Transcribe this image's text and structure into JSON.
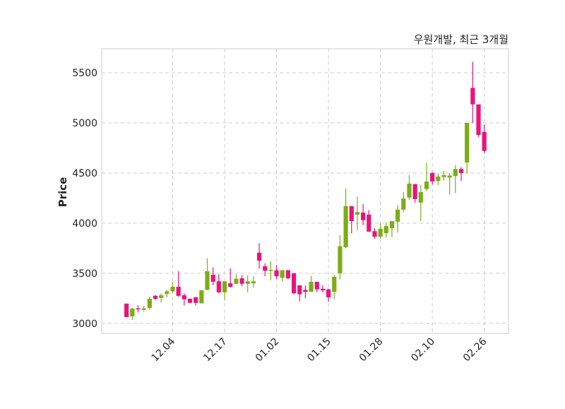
{
  "chart_data": {
    "type": "candlestick",
    "title": "우원개발, 최근 3개월",
    "xlabel": "",
    "ylabel": "Price",
    "ylim": [
      2900,
      5740
    ],
    "yticks": [
      3000,
      3500,
      4000,
      4500,
      5000,
      5500
    ],
    "xticks": [
      {
        "index": 8,
        "label": "12.04"
      },
      {
        "index": 17,
        "label": "12.17"
      },
      {
        "index": 26,
        "label": "01.02"
      },
      {
        "index": 35,
        "label": "01.15"
      },
      {
        "index": 44,
        "label": "01.28"
      },
      {
        "index": 53,
        "label": "02.10"
      },
      {
        "index": 62,
        "label": "02.26"
      }
    ],
    "grid": true,
    "colors": {
      "up": "#7cad16",
      "down": "#e8157a",
      "grid": "#cccccc",
      "frame": "#dddddd"
    },
    "ohlc": [
      [
        3197,
        3200,
        3060,
        3063
      ],
      [
        3070,
        3155,
        3035,
        3148
      ],
      [
        3150,
        3180,
        3110,
        3140
      ],
      [
        3135,
        3175,
        3120,
        3150
      ],
      [
        3155,
        3265,
        3135,
        3245
      ],
      [
        3275,
        3285,
        3235,
        3245
      ],
      [
        3255,
        3300,
        3210,
        3280
      ],
      [
        3295,
        3335,
        3260,
        3320
      ],
      [
        3320,
        3415,
        3300,
        3365
      ],
      [
        3365,
        3520,
        3265,
        3275
      ],
      [
        3280,
        3300,
        3180,
        3240
      ],
      [
        3245,
        3250,
        3200,
        3205
      ],
      [
        3260,
        3265,
        3180,
        3205
      ],
      [
        3200,
        3335,
        3200,
        3330
      ],
      [
        3335,
        3650,
        3330,
        3520
      ],
      [
        3485,
        3560,
        3380,
        3415
      ],
      [
        3420,
        3490,
        3300,
        3310
      ],
      [
        3310,
        3420,
        3230,
        3420
      ],
      [
        3400,
        3550,
        3355,
        3365
      ],
      [
        3395,
        3490,
        3390,
        3445
      ],
      [
        3450,
        3480,
        3370,
        3395
      ],
      [
        3395,
        3480,
        3310,
        3420
      ],
      [
        3400,
        3470,
        3360,
        3420
      ],
      [
        3705,
        3800,
        3545,
        3625
      ],
      [
        3570,
        3600,
        3470,
        3525
      ],
      [
        3525,
        3620,
        3430,
        3535
      ],
      [
        3530,
        3580,
        3440,
        3470
      ],
      [
        3455,
        3530,
        3420,
        3530
      ],
      [
        3530,
        3535,
        3440,
        3450
      ],
      [
        3500,
        3500,
        3290,
        3300
      ],
      [
        3380,
        3380,
        3220,
        3290
      ],
      [
        3335,
        3380,
        3250,
        3315
      ],
      [
        3315,
        3475,
        3315,
        3415
      ],
      [
        3415,
        3415,
        3310,
        3340
      ],
      [
        3345,
        3380,
        3310,
        3330
      ],
      [
        3340,
        3345,
        3215,
        3260
      ],
      [
        3315,
        3485,
        3240,
        3465
      ],
      [
        3500,
        3880,
        3440,
        3770
      ],
      [
        3760,
        4345,
        3750,
        4170
      ],
      [
        4170,
        4170,
        3900,
        4020
      ],
      [
        4085,
        4265,
        3930,
        4110
      ],
      [
        4105,
        4190,
        3980,
        4030
      ],
      [
        4085,
        4130,
        3915,
        3915
      ],
      [
        3920,
        3950,
        3845,
        3865
      ],
      [
        3865,
        3995,
        3845,
        3945
      ],
      [
        3900,
        4010,
        3860,
        3970
      ],
      [
        3950,
        4020,
        3860,
        4020
      ],
      [
        4015,
        4180,
        3905,
        4135
      ],
      [
        4135,
        4310,
        4110,
        4245
      ],
      [
        4255,
        4480,
        4230,
        4395
      ],
      [
        4390,
        4390,
        4205,
        4240
      ],
      [
        4205,
        4380,
        4020,
        4310
      ],
      [
        4340,
        4605,
        4320,
        4415
      ],
      [
        4500,
        4510,
        4385,
        4415
      ],
      [
        4420,
        4495,
        4380,
        4465
      ],
      [
        4460,
        4520,
        4425,
        4480
      ],
      [
        4455,
        4500,
        4285,
        4475
      ],
      [
        4470,
        4580,
        4300,
        4540
      ],
      [
        4540,
        4560,
        4420,
        4500
      ],
      [
        4605,
        5000,
        4495,
        5000
      ],
      [
        5350,
        5610,
        5000,
        5185
      ],
      [
        5185,
        5185,
        4860,
        4880
      ],
      [
        4910,
        4985,
        4700,
        4720
      ]
    ]
  }
}
